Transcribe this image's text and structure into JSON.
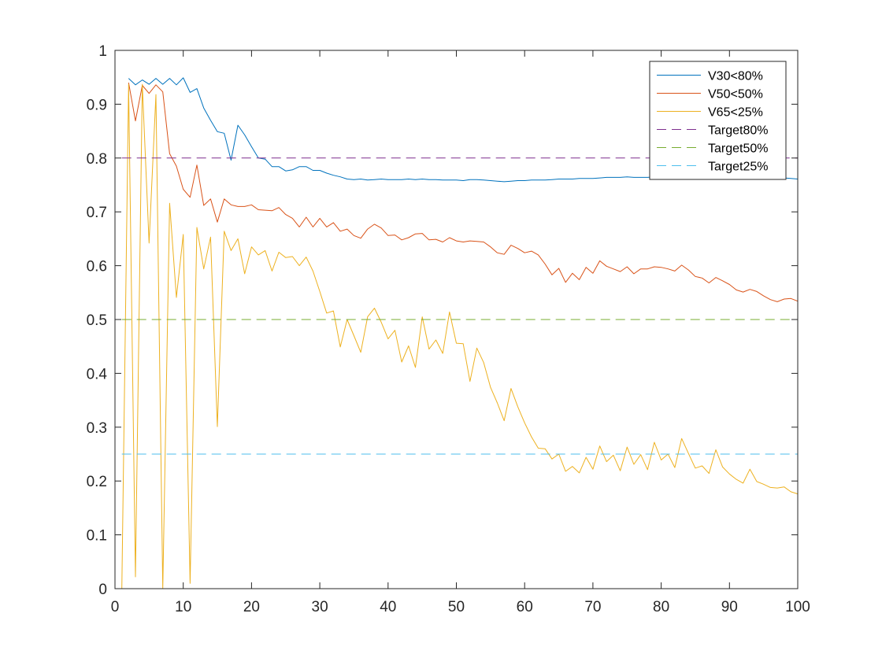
{
  "chart_data": {
    "type": "line",
    "title": "",
    "xlabel": "",
    "ylabel": "",
    "xlim": [
      0,
      100
    ],
    "ylim": [
      0,
      1
    ],
    "xticks": [
      0,
      10,
      20,
      30,
      40,
      50,
      60,
      70,
      80,
      90,
      100
    ],
    "yticks": [
      0,
      0.1,
      0.2,
      0.3,
      0.4,
      0.5,
      0.6,
      0.7,
      0.8,
      0.9,
      1
    ],
    "xtick_labels": [
      "0",
      "10",
      "20",
      "30",
      "40",
      "50",
      "60",
      "70",
      "80",
      "90",
      "100"
    ],
    "ytick_labels": [
      "0",
      "0.1",
      "0.2",
      "0.3",
      "0.4",
      "0.5",
      "0.6",
      "0.7",
      "0.8",
      "0.9",
      "1"
    ],
    "grid": false,
    "legend_position": "top-right",
    "series": [
      {
        "name": "V30<80%",
        "color": "#0072BD",
        "style": "solid",
        "x": [
          2,
          3,
          4,
          5,
          6,
          7,
          8,
          9,
          10,
          11,
          12,
          13,
          14,
          15,
          16,
          17,
          18,
          19,
          20,
          21,
          22,
          23,
          24,
          25,
          26,
          27,
          28,
          29,
          30,
          31,
          32,
          33,
          34,
          35,
          36,
          37,
          38,
          39,
          40,
          41,
          42,
          43,
          44,
          45,
          46,
          47,
          48,
          49,
          50,
          51,
          52,
          53,
          54,
          55,
          56,
          57,
          58,
          59,
          60,
          61,
          62,
          63,
          64,
          65,
          66,
          67,
          68,
          69,
          70,
          71,
          72,
          73,
          74,
          75,
          76,
          77,
          78,
          79,
          80,
          81,
          82,
          83,
          84,
          85,
          86,
          87,
          88,
          89,
          90,
          91,
          92,
          93,
          94,
          95,
          96,
          97,
          98,
          99,
          100
        ],
        "values": [
          0.948,
          0.936,
          0.945,
          0.937,
          0.948,
          0.937,
          0.948,
          0.936,
          0.949,
          0.922,
          0.929,
          0.893,
          0.87,
          0.849,
          0.846,
          0.796,
          0.861,
          0.843,
          0.821,
          0.8,
          0.798,
          0.784,
          0.784,
          0.776,
          0.778,
          0.784,
          0.784,
          0.777,
          0.777,
          0.772,
          0.768,
          0.765,
          0.761,
          0.76,
          0.761,
          0.759,
          0.76,
          0.761,
          0.76,
          0.76,
          0.76,
          0.761,
          0.76,
          0.761,
          0.76,
          0.76,
          0.759,
          0.759,
          0.759,
          0.758,
          0.76,
          0.76,
          0.759,
          0.758,
          0.757,
          0.756,
          0.757,
          0.758,
          0.758,
          0.759,
          0.759,
          0.759,
          0.76,
          0.761,
          0.761,
          0.761,
          0.762,
          0.762,
          0.762,
          0.763,
          0.764,
          0.764,
          0.764,
          0.765,
          0.764,
          0.764,
          0.764,
          0.765,
          0.764,
          0.764,
          0.763,
          0.764,
          0.764,
          0.763,
          0.764,
          0.764,
          0.764,
          0.764,
          0.764,
          0.764,
          0.764,
          0.764,
          0.765,
          0.764,
          0.764,
          0.763,
          0.763,
          0.762,
          0.761
        ]
      },
      {
        "name": "V50<50%",
        "color": "#D95319",
        "style": "solid",
        "x": [
          2,
          3,
          4,
          5,
          6,
          7,
          8,
          9,
          10,
          11,
          12,
          13,
          14,
          15,
          16,
          17,
          18,
          19,
          20,
          21,
          22,
          23,
          24,
          25,
          26,
          27,
          28,
          29,
          30,
          31,
          32,
          33,
          34,
          35,
          36,
          37,
          38,
          39,
          40,
          41,
          42,
          43,
          44,
          45,
          46,
          47,
          48,
          49,
          50,
          51,
          52,
          53,
          54,
          55,
          56,
          57,
          58,
          59,
          60,
          61,
          62,
          63,
          64,
          65,
          66,
          67,
          68,
          69,
          70,
          71,
          72,
          73,
          74,
          75,
          76,
          77,
          78,
          79,
          80,
          81,
          82,
          83,
          84,
          85,
          86,
          87,
          88,
          89,
          90,
          91,
          92,
          93,
          94,
          95,
          96,
          97,
          98,
          99,
          100
        ],
        "values": [
          0.94,
          0.869,
          0.935,
          0.92,
          0.936,
          0.923,
          0.808,
          0.785,
          0.742,
          0.727,
          0.787,
          0.712,
          0.724,
          0.681,
          0.724,
          0.713,
          0.71,
          0.71,
          0.713,
          0.704,
          0.703,
          0.702,
          0.708,
          0.695,
          0.688,
          0.672,
          0.69,
          0.672,
          0.688,
          0.672,
          0.68,
          0.664,
          0.668,
          0.656,
          0.651,
          0.668,
          0.677,
          0.67,
          0.656,
          0.657,
          0.648,
          0.652,
          0.659,
          0.66,
          0.648,
          0.649,
          0.644,
          0.652,
          0.646,
          0.644,
          0.646,
          0.645,
          0.644,
          0.635,
          0.624,
          0.621,
          0.638,
          0.632,
          0.624,
          0.627,
          0.62,
          0.603,
          0.583,
          0.595,
          0.569,
          0.586,
          0.574,
          0.597,
          0.586,
          0.609,
          0.599,
          0.594,
          0.589,
          0.598,
          0.585,
          0.594,
          0.594,
          0.598,
          0.597,
          0.594,
          0.59,
          0.601,
          0.592,
          0.58,
          0.577,
          0.568,
          0.578,
          0.572,
          0.565,
          0.555,
          0.551,
          0.556,
          0.552,
          0.544,
          0.537,
          0.533,
          0.538,
          0.539,
          0.534
        ]
      },
      {
        "name": "V65<25%",
        "color": "#EDB120",
        "style": "solid",
        "x": [
          1,
          2,
          3,
          4,
          5,
          6,
          7,
          8,
          9,
          10,
          11,
          12,
          13,
          14,
          15,
          16,
          17,
          18,
          19,
          20,
          21,
          22,
          23,
          24,
          25,
          26,
          27,
          28,
          29,
          30,
          31,
          32,
          33,
          34,
          35,
          36,
          37,
          38,
          39,
          40,
          41,
          42,
          43,
          44,
          45,
          46,
          47,
          48,
          49,
          50,
          51,
          52,
          53,
          54,
          55,
          56,
          57,
          58,
          59,
          60,
          61,
          62,
          63,
          64,
          65,
          66,
          67,
          68,
          69,
          70,
          71,
          72,
          73,
          74,
          75,
          76,
          77,
          78,
          79,
          80,
          81,
          82,
          83,
          84,
          85,
          86,
          87,
          88,
          89,
          90,
          91,
          92,
          93,
          94,
          95,
          96,
          97,
          98,
          99,
          100
        ],
        "values": [
          0.0,
          0.937,
          0.022,
          0.937,
          0.642,
          0.918,
          0.0,
          0.716,
          0.541,
          0.658,
          0.01,
          0.671,
          0.594,
          0.653,
          0.301,
          0.664,
          0.628,
          0.65,
          0.585,
          0.635,
          0.62,
          0.628,
          0.59,
          0.625,
          0.615,
          0.617,
          0.6,
          0.616,
          0.59,
          0.552,
          0.512,
          0.516,
          0.449,
          0.5,
          0.47,
          0.439,
          0.505,
          0.521,
          0.495,
          0.464,
          0.48,
          0.421,
          0.451,
          0.411,
          0.505,
          0.445,
          0.462,
          0.437,
          0.514,
          0.456,
          0.455,
          0.385,
          0.447,
          0.42,
          0.374,
          0.345,
          0.312,
          0.372,
          0.338,
          0.308,
          0.282,
          0.261,
          0.26,
          0.241,
          0.25,
          0.218,
          0.227,
          0.215,
          0.244,
          0.222,
          0.265,
          0.236,
          0.248,
          0.219,
          0.263,
          0.231,
          0.249,
          0.221,
          0.272,
          0.239,
          0.25,
          0.225,
          0.279,
          0.251,
          0.224,
          0.228,
          0.214,
          0.258,
          0.226,
          0.213,
          0.203,
          0.196,
          0.222,
          0.199,
          0.194,
          0.188,
          0.187,
          0.189,
          0.18,
          0.176
        ]
      },
      {
        "name": "Target80%",
        "color": "#7E2F8E",
        "style": "dashed",
        "x": [
          1,
          100
        ],
        "values": [
          0.8,
          0.8
        ]
      },
      {
        "name": "Target50%",
        "color": "#77AC30",
        "style": "dashed",
        "x": [
          1,
          100
        ],
        "values": [
          0.5,
          0.5
        ]
      },
      {
        "name": "Target25%",
        "color": "#4DBEEE",
        "style": "dashed",
        "x": [
          1,
          100
        ],
        "values": [
          0.25,
          0.25
        ]
      }
    ]
  }
}
